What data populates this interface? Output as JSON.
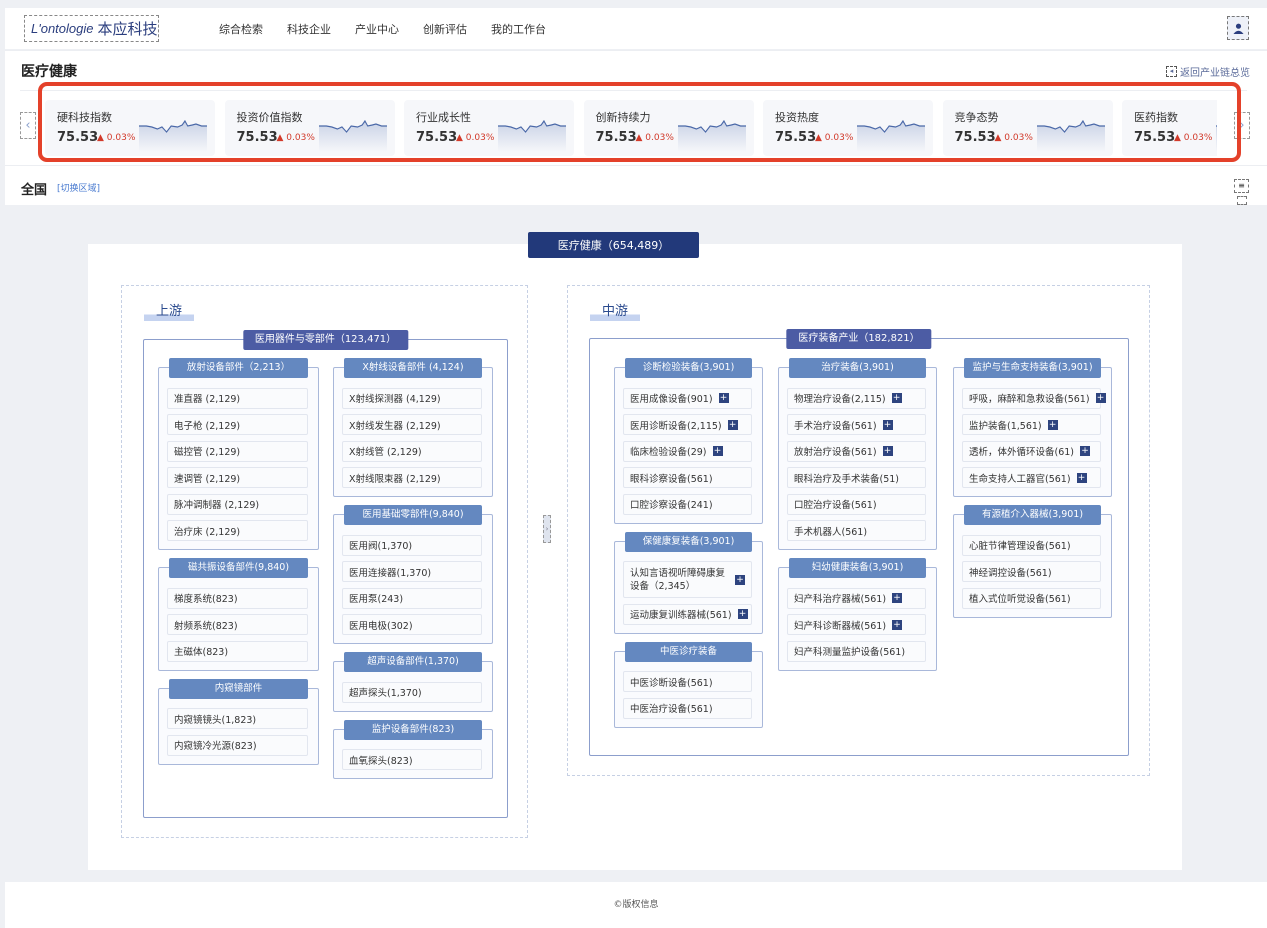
{
  "header": {
    "logo_en": "L'ontologie",
    "logo_cn": "本应科技",
    "nav": [
      "综合检索",
      "科技企业",
      "产业中心",
      "创新评估",
      "我的工作台"
    ],
    "user_icon": "user-icon"
  },
  "section": {
    "title": "医疗健康",
    "back_label": "返回产业链总览",
    "region": "全国",
    "switch_label": "[切换区域]"
  },
  "metrics": [
    {
      "name": "硬科技指数",
      "value": "75.53",
      "change": "0.03%"
    },
    {
      "name": "投资价值指数",
      "value": "75.53",
      "change": "0.03%"
    },
    {
      "name": "行业成长性",
      "value": "75.53",
      "change": "0.03%"
    },
    {
      "name": "创新持续力",
      "value": "75.53",
      "change": "0.03%"
    },
    {
      "name": "投资热度",
      "value": "75.53",
      "change": "0.03%"
    },
    {
      "name": "竞争态势",
      "value": "75.53",
      "change": "0.03%"
    },
    {
      "name": "医药指数",
      "value": "75.53",
      "change": "0.03%"
    }
  ],
  "colors": {
    "highlight": "#e4412a",
    "root": "#22397a",
    "main_header": "#4c5ca4",
    "group_header": "#6488c0",
    "up": "#d23a2a"
  },
  "root_label": "医疗健康（654,489）",
  "upstream": {
    "title": "上游",
    "main": "医用器件与零部件（123,471）",
    "columns": [
      [
        {
          "title": "放射设备部件（2,213）",
          "items": [
            {
              "label": "准直器 (2,129)"
            },
            {
              "label": "电子枪 (2,129)"
            },
            {
              "label": "磁控管 (2,129)"
            },
            {
              "label": "速调管 (2,129)"
            },
            {
              "label": "脉冲调制器 (2,129)"
            },
            {
              "label": "治疗床 (2,129)"
            }
          ]
        },
        {
          "title": "磁共振设备部件(9,840)",
          "items": [
            {
              "label": "梯度系统(823)"
            },
            {
              "label": "射频系统(823)"
            },
            {
              "label": "主磁体(823)"
            }
          ]
        },
        {
          "title": "内窥镜部件",
          "items": [
            {
              "label": "内窥镜镜头(1,823)"
            },
            {
              "label": "内窥镜冷光源(823)"
            }
          ]
        }
      ],
      [
        {
          "title": "X射线设备部件 (4,124)",
          "items": [
            {
              "label": "X射线探测器 (4,129)"
            },
            {
              "label": "X射线发生器 (2,129)"
            },
            {
              "label": "X射线管 (2,129)"
            },
            {
              "label": "X射线限束器 (2,129)"
            }
          ]
        },
        {
          "title": "医用基础零部件(9,840)",
          "items": [
            {
              "label": "医用阀(1,370)"
            },
            {
              "label": "医用连接器(1,370)"
            },
            {
              "label": "医用泵(243)"
            },
            {
              "label": "医用电极(302)"
            }
          ]
        },
        {
          "title": "超声设备部件(1,370)",
          "items": [
            {
              "label": "超声探头(1,370)"
            }
          ]
        },
        {
          "title": "监护设备部件(823)",
          "items": [
            {
              "label": "血氧探头(823)"
            }
          ]
        }
      ]
    ]
  },
  "midstream": {
    "title": "中游",
    "main": "医疗装备产业（182,821）",
    "columns": [
      [
        {
          "title": "诊断检验装备(3,901)",
          "items": [
            {
              "label": "医用成像设备(901)",
              "plus": true
            },
            {
              "label": "医用诊断设备(2,115)",
              "plus": true
            },
            {
              "label": "临床检验设备(29)",
              "plus": true
            },
            {
              "label": "眼科诊察设备(561)"
            },
            {
              "label": "口腔诊察设备(241)"
            }
          ]
        },
        {
          "title": "保健康复装备(3,901)",
          "items": [
            {
              "label": "认知言语视听障碍康复设备（2,345）",
              "plus": true,
              "two": true
            },
            {
              "label": "运动康复训练器械(561)",
              "plus": true
            }
          ]
        },
        {
          "title": "中医诊疗装备",
          "items": [
            {
              "label": "中医诊断设备(561)"
            },
            {
              "label": "中医治疗设备(561)"
            }
          ]
        }
      ],
      [
        {
          "title": "治疗装备(3,901)",
          "items": [
            {
              "label": "物理治疗设备(2,115)",
              "plus": true
            },
            {
              "label": "手术治疗设备(561)",
              "plus": true
            },
            {
              "label": "放射治疗设备(561)",
              "plus": true
            },
            {
              "label": "眼科治疗及手术装备(51)"
            },
            {
              "label": "口腔治疗设备(561)"
            },
            {
              "label": "手术机器人(561)"
            }
          ]
        },
        {
          "title": "妇幼健康装备(3,901)",
          "items": [
            {
              "label": "妇产科治疗器械(561)",
              "plus": true
            },
            {
              "label": "妇产科诊断器械(561)",
              "plus": true
            },
            {
              "label": "妇产科测量监护设备(561)"
            }
          ]
        }
      ],
      [
        {
          "title": "监护与生命支持装备(3,901)",
          "items": [
            {
              "label": "呼吸，麻醉和急救设备(561)",
              "plus": true
            },
            {
              "label": "监护装备(1,561)",
              "plus": true
            },
            {
              "label": "透析，体外循环设备(61)",
              "plus": true
            },
            {
              "label": "生命支持人工器官(561)",
              "plus": true
            }
          ]
        },
        {
          "title": "有源植介入器械(3,901)",
          "items": [
            {
              "label": "心脏节律管理设备(561)"
            },
            {
              "label": "神经调控设备(561)"
            },
            {
              "label": "植入式位听觉设备(561)"
            }
          ]
        }
      ]
    ]
  },
  "footer": "©版权信息"
}
